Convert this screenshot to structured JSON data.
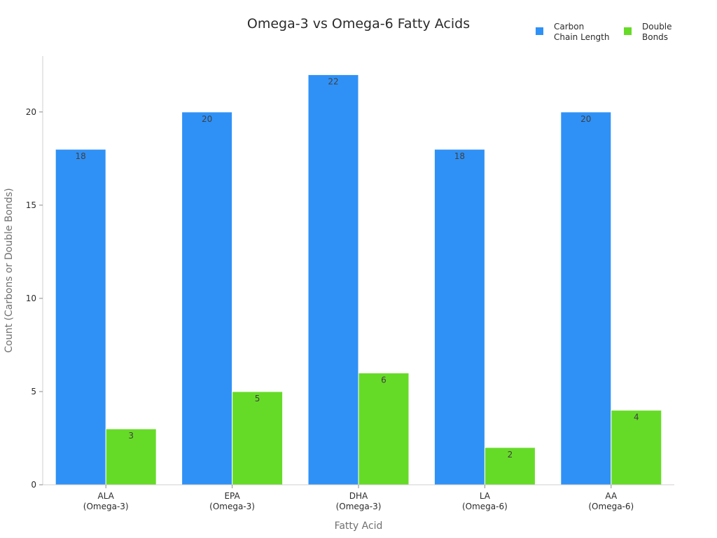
{
  "chart_data": {
    "type": "bar",
    "title": "Omega-3 vs Omega-6 Fatty Acids",
    "xlabel": "Fatty Acid",
    "ylabel": "Count (Carbons or Double Bonds)",
    "categories": [
      [
        "ALA",
        "(Omega-3)"
      ],
      [
        "EPA",
        "(Omega-3)"
      ],
      [
        "DHA",
        "(Omega-3)"
      ],
      [
        "LA",
        "(Omega-6)"
      ],
      [
        "AA",
        "(Omega-6)"
      ]
    ],
    "series": [
      {
        "name": [
          "Carbon",
          "Chain Length"
        ],
        "color": "#2f91f6",
        "values": [
          18,
          20,
          22,
          18,
          20
        ]
      },
      {
        "name": [
          "Double",
          "Bonds"
        ],
        "color": "#66db27",
        "values": [
          3,
          5,
          6,
          2,
          4
        ]
      }
    ],
    "ylim": [
      0,
      23
    ],
    "yticks": [
      0,
      5,
      10,
      15,
      20
    ],
    "grid": false,
    "legend_position": "top-right",
    "data_labels": true
  }
}
